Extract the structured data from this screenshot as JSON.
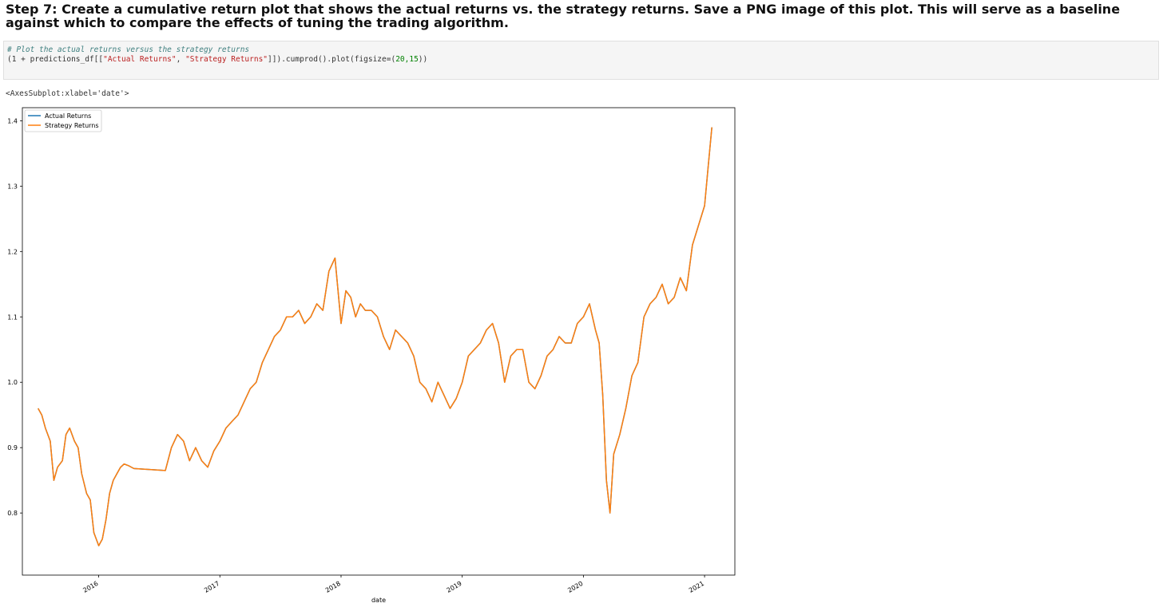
{
  "markdown": {
    "heading": "Step 7: Create a cumulative return plot that shows the actual returns vs. the strategy returns. Save a PNG image of this plot. This will serve as a baseline against which to compare the effects of tuning the trading algorithm."
  },
  "code_cell": {
    "comment": "# Plot the actual returns versus the strategy returns",
    "line2_pre": "(1 + predictions_df[[",
    "line2_str1": "\"Actual Returns\"",
    "line2_sep": ", ",
    "line2_str2": "\"Strategy Returns\"",
    "line2_mid": "]]).cumprod().plot(figsize=(",
    "line2_num": "20,15",
    "line2_end": "))"
  },
  "output": {
    "repr": "<AxesSubplot:xlabel='date'>"
  },
  "colors": {
    "actual": "#1f77b4",
    "strategy": "#ff7f0e"
  },
  "chart_data": {
    "type": "line",
    "xlabel": "date",
    "ylabel": "",
    "title": "",
    "xlim": [
      2015.37,
      2021.25
    ],
    "ylim": [
      0.705,
      1.42
    ],
    "xtick_values": [
      2016,
      2017,
      2018,
      2019,
      2020,
      2021
    ],
    "xtick_labels": [
      "2016",
      "2017",
      "2018",
      "2019",
      "2020",
      "2021"
    ],
    "ytick_values": [
      0.8,
      0.9,
      1.0,
      1.1,
      1.2,
      1.3,
      1.4
    ],
    "ytick_labels": [
      "0.8",
      "0.9",
      "1.0",
      "1.1",
      "1.2",
      "1.3",
      "1.4"
    ],
    "legend": "top-left",
    "grid": false,
    "series": [
      {
        "name": "Actual Returns",
        "x": [
          2015.5,
          2015.53,
          2015.56,
          2015.6,
          2015.63,
          2015.66,
          2015.7,
          2015.73,
          2015.76,
          2015.8,
          2015.83,
          2015.86,
          2015.9,
          2015.93,
          2015.96,
          2016.0,
          2016.03,
          2016.06,
          2016.09,
          2016.12,
          2016.15,
          2016.18,
          2016.21,
          2016.25,
          2016.29,
          2016.55,
          2016.6,
          2016.65,
          2016.7,
          2016.75,
          2016.8,
          2016.85,
          2016.9,
          2016.95,
          2017.0,
          2017.05,
          2017.1,
          2017.15,
          2017.2,
          2017.25,
          2017.3,
          2017.35,
          2017.4,
          2017.45,
          2017.5,
          2017.55,
          2017.6,
          2017.65,
          2017.7,
          2017.75,
          2017.8,
          2017.85,
          2017.9,
          2017.95,
          2018.0,
          2018.04,
          2018.08,
          2018.12,
          2018.16,
          2018.2,
          2018.25,
          2018.3,
          2018.35,
          2018.4,
          2018.45,
          2018.5,
          2018.55,
          2018.6,
          2018.65,
          2018.7,
          2018.75,
          2018.8,
          2018.85,
          2018.9,
          2018.95,
          2019.0,
          2019.05,
          2019.1,
          2019.15,
          2019.2,
          2019.25,
          2019.3,
          2019.35,
          2019.4,
          2019.45,
          2019.5,
          2019.55,
          2019.6,
          2019.65,
          2019.7,
          2019.75,
          2019.8,
          2019.85,
          2019.9,
          2019.95,
          2020.0,
          2020.05,
          2020.1,
          2020.13,
          2020.16,
          2020.19,
          2020.22,
          2020.25,
          2020.3,
          2020.35,
          2020.4,
          2020.45,
          2020.5,
          2020.55,
          2020.6,
          2020.65,
          2020.7,
          2020.75,
          2020.8,
          2020.85,
          2020.9,
          2020.95,
          2021.0,
          2021.03,
          2021.06
        ],
        "y": [
          0.96,
          0.95,
          0.93,
          0.91,
          0.85,
          0.87,
          0.88,
          0.92,
          0.93,
          0.91,
          0.9,
          0.86,
          0.83,
          0.82,
          0.77,
          0.75,
          0.76,
          0.79,
          0.83,
          0.85,
          0.86,
          0.87,
          0.875,
          0.872,
          0.868,
          0.865,
          0.9,
          0.92,
          0.91,
          0.88,
          0.9,
          0.88,
          0.87,
          0.895,
          0.91,
          0.93,
          0.94,
          0.95,
          0.97,
          0.99,
          1.0,
          1.03,
          1.05,
          1.07,
          1.08,
          1.1,
          1.1,
          1.11,
          1.09,
          1.1,
          1.12,
          1.11,
          1.17,
          1.19,
          1.09,
          1.14,
          1.13,
          1.1,
          1.12,
          1.11,
          1.11,
          1.1,
          1.07,
          1.05,
          1.08,
          1.07,
          1.06,
          1.04,
          1.0,
          0.99,
          0.97,
          1.0,
          0.98,
          0.96,
          0.975,
          1.0,
          1.04,
          1.05,
          1.06,
          1.08,
          1.09,
          1.06,
          1.0,
          1.04,
          1.05,
          1.05,
          1.0,
          0.99,
          1.01,
          1.04,
          1.05,
          1.07,
          1.06,
          1.06,
          1.09,
          1.1,
          1.12,
          1.08,
          1.06,
          0.98,
          0.85,
          0.8,
          0.89,
          0.92,
          0.96,
          1.01,
          1.03,
          1.1,
          1.12,
          1.13,
          1.15,
          1.12,
          1.13,
          1.16,
          1.14,
          1.21,
          1.24,
          1.27,
          1.33,
          1.39
        ]
      },
      {
        "name": "Strategy Returns",
        "x": [
          2015.5,
          2015.53,
          2015.56,
          2015.6,
          2015.63,
          2015.66,
          2015.7,
          2015.73,
          2015.76,
          2015.8,
          2015.83,
          2015.86,
          2015.9,
          2015.93,
          2015.96,
          2016.0,
          2016.03,
          2016.06,
          2016.09,
          2016.12,
          2016.15,
          2016.18,
          2016.21,
          2016.25,
          2016.29,
          2016.55,
          2016.6,
          2016.65,
          2016.7,
          2016.75,
          2016.8,
          2016.85,
          2016.9,
          2016.95,
          2017.0,
          2017.05,
          2017.1,
          2017.15,
          2017.2,
          2017.25,
          2017.3,
          2017.35,
          2017.4,
          2017.45,
          2017.5,
          2017.55,
          2017.6,
          2017.65,
          2017.7,
          2017.75,
          2017.8,
          2017.85,
          2017.9,
          2017.95,
          2018.0,
          2018.04,
          2018.08,
          2018.12,
          2018.16,
          2018.2,
          2018.25,
          2018.3,
          2018.35,
          2018.4,
          2018.45,
          2018.5,
          2018.55,
          2018.6,
          2018.65,
          2018.7,
          2018.75,
          2018.8,
          2018.85,
          2018.9,
          2018.95,
          2019.0,
          2019.05,
          2019.1,
          2019.15,
          2019.2,
          2019.25,
          2019.3,
          2019.35,
          2019.4,
          2019.45,
          2019.5,
          2019.55,
          2019.6,
          2019.65,
          2019.7,
          2019.75,
          2019.8,
          2019.85,
          2019.9,
          2019.95,
          2020.0,
          2020.05,
          2020.1,
          2020.13,
          2020.16,
          2020.19,
          2020.22,
          2020.25,
          2020.3,
          2020.35,
          2020.4,
          2020.45,
          2020.5,
          2020.55,
          2020.6,
          2020.65,
          2020.7,
          2020.75,
          2020.8,
          2020.85,
          2020.9,
          2020.95,
          2021.0,
          2021.03,
          2021.06
        ],
        "y": [
          0.96,
          0.95,
          0.93,
          0.91,
          0.85,
          0.87,
          0.88,
          0.92,
          0.93,
          0.91,
          0.9,
          0.86,
          0.83,
          0.82,
          0.77,
          0.75,
          0.76,
          0.79,
          0.83,
          0.85,
          0.86,
          0.87,
          0.875,
          0.872,
          0.868,
          0.865,
          0.9,
          0.92,
          0.91,
          0.88,
          0.9,
          0.88,
          0.87,
          0.895,
          0.91,
          0.93,
          0.94,
          0.95,
          0.97,
          0.99,
          1.0,
          1.03,
          1.05,
          1.07,
          1.08,
          1.1,
          1.1,
          1.11,
          1.09,
          1.1,
          1.12,
          1.11,
          1.17,
          1.19,
          1.09,
          1.14,
          1.13,
          1.1,
          1.12,
          1.11,
          1.11,
          1.1,
          1.07,
          1.05,
          1.08,
          1.07,
          1.06,
          1.04,
          1.0,
          0.99,
          0.97,
          1.0,
          0.98,
          0.96,
          0.975,
          1.0,
          1.04,
          1.05,
          1.06,
          1.08,
          1.09,
          1.06,
          1.0,
          1.04,
          1.05,
          1.05,
          1.0,
          0.99,
          1.01,
          1.04,
          1.05,
          1.07,
          1.06,
          1.06,
          1.09,
          1.1,
          1.12,
          1.08,
          1.06,
          0.98,
          0.85,
          0.8,
          0.89,
          0.92,
          0.96,
          1.01,
          1.03,
          1.1,
          1.12,
          1.13,
          1.15,
          1.12,
          1.13,
          1.16,
          1.14,
          1.21,
          1.24,
          1.27,
          1.33,
          1.39
        ]
      }
    ]
  }
}
